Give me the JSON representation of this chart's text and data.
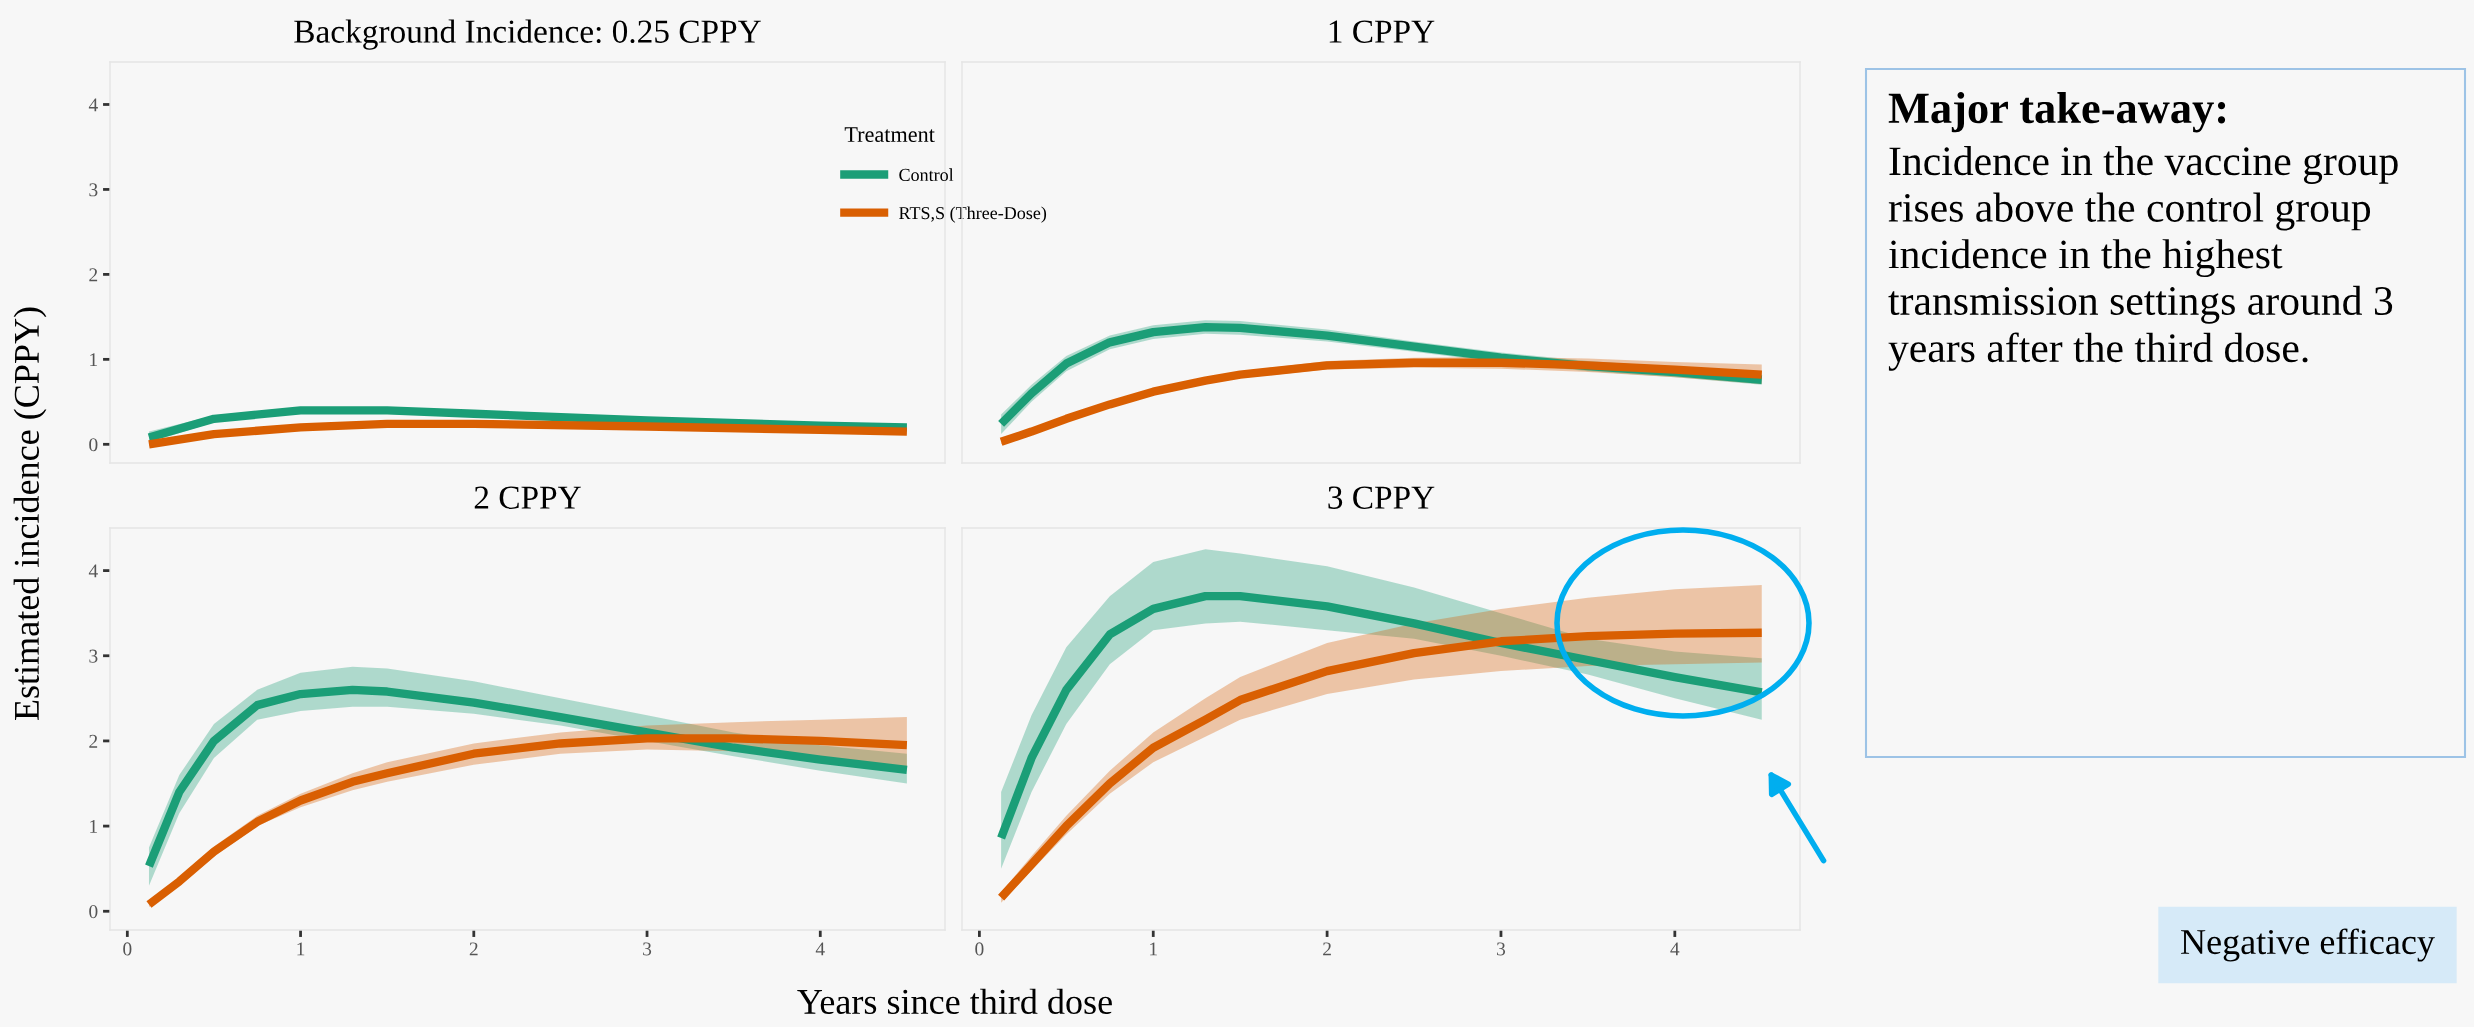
{
  "chart_data": [
    {
      "type": "line",
      "title": "Background Incidence: 0.25 CPPY",
      "legend_title": "Treatment",
      "legend": "top right",
      "grid": false,
      "tick_labels": "y",
      "xlim": [
        -0.1,
        4.72
      ],
      "ylim": [
        -0.22,
        4.5
      ],
      "xticks": [
        0,
        1,
        2,
        3,
        4
      ],
      "yticks": [
        0,
        1,
        2,
        3,
        4
      ],
      "x": [
        0.125,
        0.5,
        1,
        1.5,
        2,
        3,
        4,
        4.5
      ],
      "series": [
        {
          "name": "Control",
          "color": "#1b9e77",
          "values": [
            0.08,
            0.3,
            0.4,
            0.4,
            0.36,
            0.28,
            0.22,
            0.2
          ],
          "lower": [
            0.02,
            0.26,
            0.37,
            0.37,
            0.33,
            0.25,
            0.19,
            0.17
          ],
          "upper": [
            0.15,
            0.34,
            0.43,
            0.43,
            0.39,
            0.31,
            0.25,
            0.23
          ]
        },
        {
          "name": "RTS,S (Three-Dose)",
          "color": "#d95f02",
          "values": [
            0.0,
            0.12,
            0.2,
            0.24,
            0.24,
            0.21,
            0.17,
            0.15
          ],
          "lower": [
            -0.02,
            0.1,
            0.18,
            0.22,
            0.22,
            0.19,
            0.14,
            0.12
          ],
          "upper": [
            0.02,
            0.14,
            0.22,
            0.26,
            0.26,
            0.23,
            0.2,
            0.18
          ]
        }
      ]
    },
    {
      "type": "line",
      "title": "1 CPPY",
      "grid": false,
      "tick_labels": false,
      "xlim": [
        -0.1,
        4.72
      ],
      "ylim": [
        -0.22,
        4.5
      ],
      "xticks": [
        0,
        1,
        2,
        3,
        4
      ],
      "yticks": [
        0,
        1,
        2,
        3,
        4
      ],
      "x": [
        0.125,
        0.3,
        0.5,
        0.75,
        1,
        1.3,
        1.5,
        2,
        2.5,
        3,
        3.5,
        4,
        4.5
      ],
      "series": [
        {
          "color": "#1b9e77",
          "values": [
            0.24,
            0.6,
            0.95,
            1.2,
            1.32,
            1.38,
            1.37,
            1.28,
            1.15,
            1.02,
            0.92,
            0.85,
            0.76
          ],
          "lower": [
            0.12,
            0.5,
            0.86,
            1.12,
            1.24,
            1.3,
            1.29,
            1.21,
            1.09,
            0.96,
            0.86,
            0.79,
            0.7
          ],
          "upper": [
            0.35,
            0.7,
            1.04,
            1.28,
            1.4,
            1.46,
            1.45,
            1.35,
            1.21,
            1.08,
            0.98,
            0.91,
            0.83
          ]
        },
        {
          "color": "#d95f02",
          "values": [
            0.03,
            0.15,
            0.3,
            0.47,
            0.62,
            0.75,
            0.82,
            0.93,
            0.96,
            0.96,
            0.93,
            0.88,
            0.82
          ],
          "lower": [
            0.0,
            0.12,
            0.27,
            0.43,
            0.58,
            0.71,
            0.78,
            0.88,
            0.9,
            0.89,
            0.85,
            0.79,
            0.71
          ],
          "upper": [
            0.06,
            0.18,
            0.33,
            0.51,
            0.66,
            0.79,
            0.86,
            0.98,
            1.02,
            1.03,
            1.01,
            0.97,
            0.94
          ]
        }
      ]
    },
    {
      "type": "line",
      "title": "2 CPPY",
      "xlabel": "Years since third dose",
      "ylabel": "Estimated incidence (CPPY)",
      "grid": false,
      "xlim": [
        -0.1,
        4.72
      ],
      "ylim": [
        -0.22,
        4.5
      ],
      "xticks": [
        0,
        1,
        2,
        3,
        4
      ],
      "yticks": [
        0,
        1,
        2,
        3,
        4
      ],
      "x": [
        0.125,
        0.3,
        0.5,
        0.75,
        1,
        1.3,
        1.5,
        2,
        2.5,
        3,
        3.5,
        4,
        4.5
      ],
      "series": [
        {
          "color": "#1b9e77",
          "values": [
            0.53,
            1.4,
            2.0,
            2.42,
            2.55,
            2.6,
            2.58,
            2.45,
            2.28,
            2.1,
            1.92,
            1.78,
            1.66
          ],
          "lower": [
            0.3,
            1.15,
            1.8,
            2.25,
            2.35,
            2.4,
            2.4,
            2.32,
            2.18,
            2.0,
            1.82,
            1.65,
            1.5
          ],
          "upper": [
            0.75,
            1.6,
            2.2,
            2.6,
            2.8,
            2.87,
            2.85,
            2.7,
            2.5,
            2.3,
            2.1,
            1.95,
            1.85
          ]
        },
        {
          "color": "#d95f02",
          "values": [
            0.08,
            0.35,
            0.7,
            1.05,
            1.3,
            1.52,
            1.62,
            1.85,
            1.97,
            2.03,
            2.03,
            2.0,
            1.95
          ],
          "lower": [
            0.05,
            0.3,
            0.64,
            1.0,
            1.22,
            1.42,
            1.52,
            1.72,
            1.85,
            1.9,
            1.88,
            1.82,
            1.7
          ],
          "upper": [
            0.12,
            0.4,
            0.76,
            1.12,
            1.38,
            1.62,
            1.75,
            1.97,
            2.1,
            2.18,
            2.22,
            2.25,
            2.28
          ]
        }
      ]
    },
    {
      "type": "line",
      "title": "3 CPPY",
      "grid": false,
      "tick_labels": "x",
      "xlim": [
        -0.1,
        4.72
      ],
      "ylim": [
        -0.22,
        4.5
      ],
      "xticks": [
        0,
        1,
        2,
        3,
        4
      ],
      "yticks": [
        0,
        1,
        2,
        3,
        4
      ],
      "x": [
        0.125,
        0.3,
        0.5,
        0.75,
        1,
        1.3,
        1.5,
        2,
        2.5,
        3,
        3.5,
        4,
        4.5
      ],
      "annotations": [
        "Major take-away:",
        "Incidence in the vaccine group rises above the control group incidence in the highest transmission settings around 3 years after the third dose.",
        "Negative efficacy"
      ],
      "series": [
        {
          "color": "#1b9e77",
          "values": [
            0.86,
            1.8,
            2.6,
            3.25,
            3.55,
            3.7,
            3.7,
            3.58,
            3.38,
            3.15,
            2.95,
            2.75,
            2.57
          ],
          "lower": [
            0.5,
            1.4,
            2.2,
            2.9,
            3.3,
            3.38,
            3.4,
            3.3,
            3.2,
            3.0,
            2.78,
            2.5,
            2.25
          ],
          "upper": [
            1.4,
            2.3,
            3.1,
            3.7,
            4.1,
            4.25,
            4.2,
            4.05,
            3.8,
            3.5,
            3.2,
            3.05,
            2.97
          ]
        },
        {
          "color": "#d95f02",
          "values": [
            0.16,
            0.55,
            1.0,
            1.5,
            1.92,
            2.25,
            2.48,
            2.82,
            3.03,
            3.17,
            3.23,
            3.26,
            3.27
          ],
          "lower": [
            0.1,
            0.48,
            0.9,
            1.38,
            1.75,
            2.05,
            2.25,
            2.55,
            2.72,
            2.82,
            2.88,
            2.9,
            2.92
          ],
          "upper": [
            0.22,
            0.65,
            1.12,
            1.65,
            2.1,
            2.5,
            2.75,
            3.15,
            3.38,
            3.55,
            3.68,
            3.78,
            3.83
          ]
        }
      ]
    }
  ]
}
